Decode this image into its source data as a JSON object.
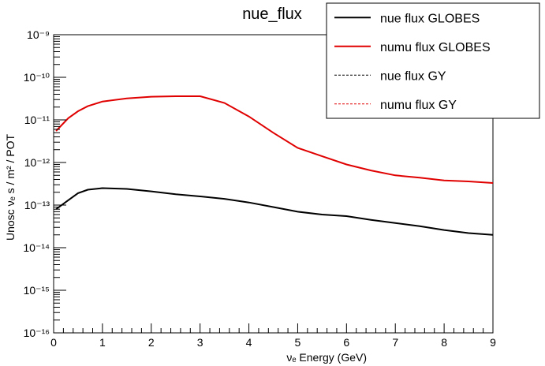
{
  "chart_data": {
    "type": "line",
    "title": "nue_flux",
    "xlabel": "νₑ Energy (GeV)",
    "ylabel": "Unosc νₑ s / m² / POT",
    "xlim": [
      0,
      9
    ],
    "ylim": [
      1e-16,
      1e-09
    ],
    "y_scale": "log",
    "x_ticks": [
      "0",
      "1",
      "2",
      "3",
      "4",
      "5",
      "6",
      "7",
      "8",
      "9"
    ],
    "y_ticks": [
      "10⁻¹⁶",
      "10⁻¹⁵",
      "10⁻¹⁴",
      "10⁻¹³",
      "10⁻¹²",
      "10⁻¹¹",
      "10⁻¹⁰",
      "10⁻⁹"
    ],
    "legend_position": "top-right",
    "x": [
      0.05,
      0.3,
      0.5,
      0.7,
      1.0,
      1.5,
      2.0,
      2.5,
      3.0,
      3.5,
      4.0,
      4.5,
      5.0,
      5.5,
      6.0,
      6.5,
      7.0,
      7.5,
      8.0,
      8.5,
      9.0
    ],
    "series": [
      {
        "name": "nue flux GLOBES",
        "color": "#000000",
        "style": "solid",
        "values": [
          8e-14,
          1.3e-13,
          1.9e-13,
          2.3e-13,
          2.5e-13,
          2.4e-13,
          2.1e-13,
          1.8e-13,
          1.6e-13,
          1.4e-13,
          1.15e-13,
          9e-14,
          7e-14,
          6e-14,
          5.5e-14,
          4.5e-14,
          3.8e-14,
          3.2e-14,
          2.6e-14,
          2.2e-14,
          2e-14
        ]
      },
      {
        "name": "numu flux GLOBES",
        "color": "#e00000",
        "style": "solid",
        "values": [
          5.5e-12,
          1.1e-11,
          1.6e-11,
          2.1e-11,
          2.7e-11,
          3.2e-11,
          3.5e-11,
          3.6e-11,
          3.6e-11,
          2.5e-11,
          1.2e-11,
          5e-12,
          2.2e-12,
          1.4e-12,
          9e-13,
          6.5e-13,
          5e-13,
          4.4e-13,
          3.8e-13,
          3.6e-13,
          3.3e-13
        ]
      },
      {
        "name": "nue flux GY",
        "color": "#000000",
        "style": "dashed",
        "values": [
          8e-14,
          1.3e-13,
          1.9e-13,
          2.3e-13,
          2.5e-13,
          2.4e-13,
          2.1e-13,
          1.8e-13,
          1.6e-13,
          1.4e-13,
          1.15e-13,
          9e-14,
          7e-14,
          6e-14,
          5.5e-14,
          4.5e-14,
          3.8e-14,
          3.2e-14,
          2.6e-14,
          2.2e-14,
          2e-14
        ]
      },
      {
        "name": "numu flux GY",
        "color": "#e00000",
        "style": "dashed",
        "values": [
          5.5e-12,
          1.1e-11,
          1.6e-11,
          2.1e-11,
          2.7e-11,
          3.2e-11,
          3.5e-11,
          3.6e-11,
          3.6e-11,
          2.5e-11,
          1.2e-11,
          5e-12,
          2.2e-12,
          1.4e-12,
          9e-13,
          6.5e-13,
          5e-13,
          4.4e-13,
          3.8e-13,
          3.6e-13,
          3.3e-13
        ]
      }
    ]
  }
}
